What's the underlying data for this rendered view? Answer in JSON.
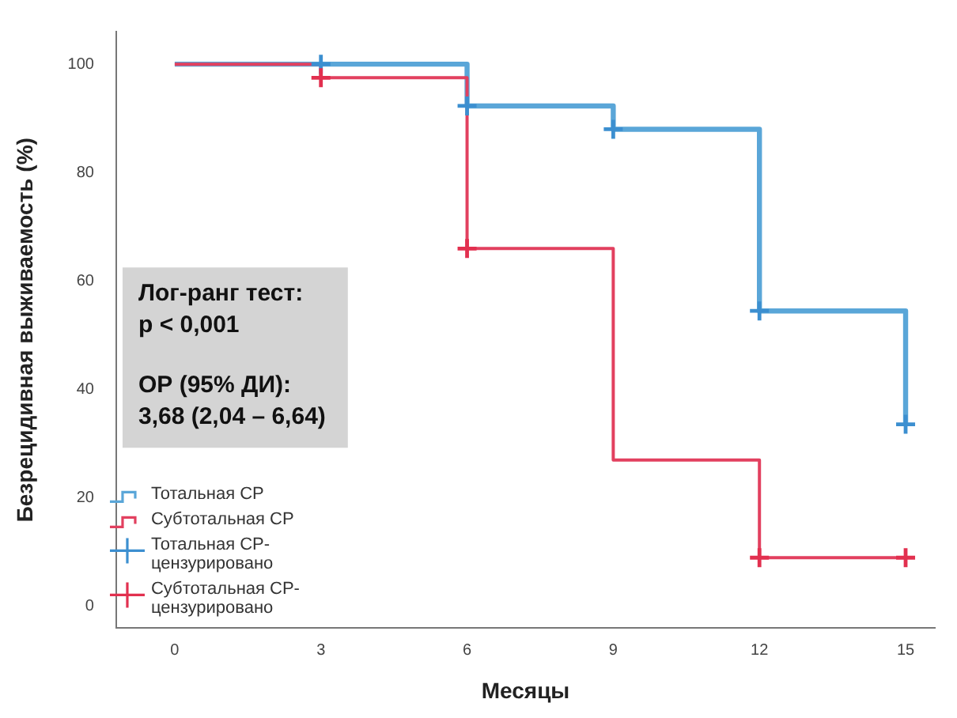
{
  "chart_data": {
    "type": "step",
    "xlabel": "Месяцы",
    "ylabel": "Безрецидивная выживаемость (%)",
    "xlim": [
      -1.2,
      15.6
    ],
    "xticks": [
      0,
      3,
      6,
      9,
      12,
      15
    ],
    "ylim": [
      -4,
      106
    ],
    "yticks": [
      0,
      20,
      40,
      60,
      80,
      100
    ],
    "grid": false,
    "legend": "bottom left",
    "annotations": [
      "Лог-ранг тест:",
      "p < 0,001",
      "ОР (95% ДИ):",
      "3,68 (2,04 – 6,64)"
    ],
    "series": [
      {
        "name": "Тотальная СР",
        "color": "#5aa6d8",
        "marker": "none",
        "x": [
          0,
          3,
          6,
          9,
          12,
          15
        ],
        "values": [
          100,
          100,
          92.3,
          88,
          54.5,
          33.6
        ]
      },
      {
        "name": "Субтотальная СР",
        "color": "#e2405f",
        "marker": "none",
        "x": [
          0,
          3,
          6,
          9,
          12,
          15
        ],
        "values": [
          100,
          97.5,
          66,
          27,
          9,
          9
        ]
      },
      {
        "name": "Тотальная СР-цензурировано",
        "type": "scatter",
        "color": "#3c8fd0",
        "marker": "cross",
        "x": [
          3,
          6,
          9,
          12,
          15
        ],
        "values": [
          100,
          92.3,
          88,
          54.5,
          33.6
        ]
      },
      {
        "name": "Субтотальная СР-цензурировано",
        "type": "scatter",
        "color": "#e2304f",
        "marker": "cross",
        "x": [
          3,
          6,
          12,
          15
        ],
        "values": [
          97.5,
          66,
          9,
          9
        ]
      }
    ]
  }
}
